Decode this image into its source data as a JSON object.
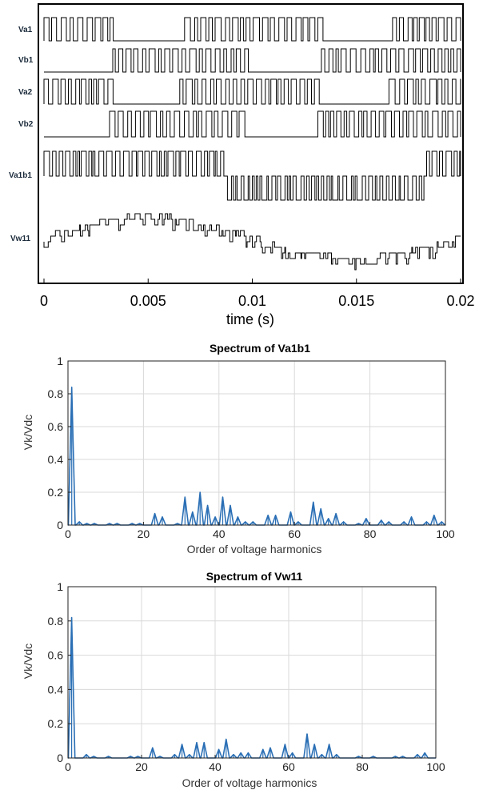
{
  "chart_data": [
    {
      "type": "line",
      "xlabel": "time (s)",
      "xlim": [
        0,
        0.02
      ],
      "xticks": [
        "0",
        "0.005",
        "0.01",
        "0.015",
        "0.02"
      ],
      "signals": [
        {
          "name": "Va1",
          "kind": "two-level",
          "active_windows": [
            [
              0.0,
              0.0032
            ],
            [
              0.0067,
              0.0133
            ],
            [
              0.0167,
              0.02
            ]
          ]
        },
        {
          "name": "Vb1",
          "kind": "two-level",
          "active_windows": [
            [
              0.0033,
              0.01
            ],
            [
              0.0133,
              0.02
            ]
          ]
        },
        {
          "name": "Va2",
          "kind": "two-level",
          "active_windows": [
            [
              0.0,
              0.0032
            ],
            [
              0.0065,
              0.0132
            ],
            [
              0.0165,
              0.02
            ]
          ]
        },
        {
          "name": "Vb2",
          "kind": "two-level",
          "active_windows": [
            [
              0.0031,
              0.0098
            ],
            [
              0.0131,
              0.02
            ]
          ]
        },
        {
          "name": "Va1b1",
          "kind": "three-level",
          "positive_window": [
            0.0,
            0.0085
          ],
          "negative_window": [
            0.0083,
            0.0183
          ],
          "tail_window": [
            0.0183,
            0.02
          ]
        },
        {
          "name": "Vw11",
          "kind": "multilevel",
          "envelope": "sinusoidal"
        }
      ]
    },
    {
      "type": "bar",
      "title": "Spectrum of Va1b1",
      "xlabel": "Order of voltage harmonics",
      "ylabel": "Vk/Vdc",
      "xlim": [
        0,
        100
      ],
      "ylim": [
        0,
        1
      ],
      "xticks": [
        "0",
        "20",
        "40",
        "60",
        "80",
        "100"
      ],
      "yticks": [
        "0",
        "0.2",
        "0.4",
        "0.6",
        "0.8",
        "1"
      ],
      "grid": true,
      "color": "#2a6fb5",
      "harmonics": [
        [
          1,
          0.84
        ],
        [
          3,
          0.02
        ],
        [
          5,
          0.01
        ],
        [
          7,
          0.01
        ],
        [
          11,
          0.01
        ],
        [
          13,
          0.01
        ],
        [
          17,
          0.01
        ],
        [
          19,
          0.01
        ],
        [
          23,
          0.07
        ],
        [
          25,
          0.05
        ],
        [
          29,
          0.01
        ],
        [
          31,
          0.17
        ],
        [
          33,
          0.08
        ],
        [
          35,
          0.2
        ],
        [
          37,
          0.12
        ],
        [
          39,
          0.05
        ],
        [
          41,
          0.17
        ],
        [
          43,
          0.12
        ],
        [
          45,
          0.05
        ],
        [
          47,
          0.02
        ],
        [
          49,
          0.02
        ],
        [
          53,
          0.06
        ],
        [
          55,
          0.06
        ],
        [
          59,
          0.08
        ],
        [
          61,
          0.02
        ],
        [
          65,
          0.14
        ],
        [
          67,
          0.1
        ],
        [
          69,
          0.04
        ],
        [
          71,
          0.07
        ],
        [
          73,
          0.02
        ],
        [
          77,
          0.01
        ],
        [
          79,
          0.04
        ],
        [
          83,
          0.03
        ],
        [
          85,
          0.02
        ],
        [
          89,
          0.02
        ],
        [
          91,
          0.05
        ],
        [
          95,
          0.02
        ],
        [
          97,
          0.06
        ],
        [
          99,
          0.02
        ]
      ]
    },
    {
      "type": "bar",
      "title": "Spectrum of Vw11",
      "xlabel": "Order of voltage harmonics",
      "ylabel": "Vk/Vdc",
      "xlim": [
        0,
        100
      ],
      "ylim": [
        0,
        1
      ],
      "xticks": [
        "0",
        "20",
        "40",
        "60",
        "80",
        "100"
      ],
      "yticks": [
        "0",
        "0.2",
        "0.4",
        "0.6",
        "0.8",
        "1"
      ],
      "grid": true,
      "color": "#2a6fb5",
      "harmonics": [
        [
          1,
          0.82
        ],
        [
          5,
          0.02
        ],
        [
          7,
          0.01
        ],
        [
          11,
          0.01
        ],
        [
          17,
          0.01
        ],
        [
          19,
          0.01
        ],
        [
          23,
          0.06
        ],
        [
          25,
          0.01
        ],
        [
          29,
          0.02
        ],
        [
          31,
          0.08
        ],
        [
          33,
          0.02
        ],
        [
          35,
          0.09
        ],
        [
          37,
          0.09
        ],
        [
          41,
          0.05
        ],
        [
          43,
          0.11
        ],
        [
          45,
          0.02
        ],
        [
          47,
          0.03
        ],
        [
          49,
          0.03
        ],
        [
          53,
          0.05
        ],
        [
          55,
          0.06
        ],
        [
          59,
          0.08
        ],
        [
          61,
          0.03
        ],
        [
          65,
          0.14
        ],
        [
          67,
          0.08
        ],
        [
          69,
          0.02
        ],
        [
          71,
          0.08
        ],
        [
          73,
          0.02
        ],
        [
          79,
          0.01
        ],
        [
          83,
          0.01
        ],
        [
          89,
          0.01
        ],
        [
          91,
          0.01
        ],
        [
          95,
          0.02
        ],
        [
          97,
          0.03
        ]
      ]
    }
  ]
}
